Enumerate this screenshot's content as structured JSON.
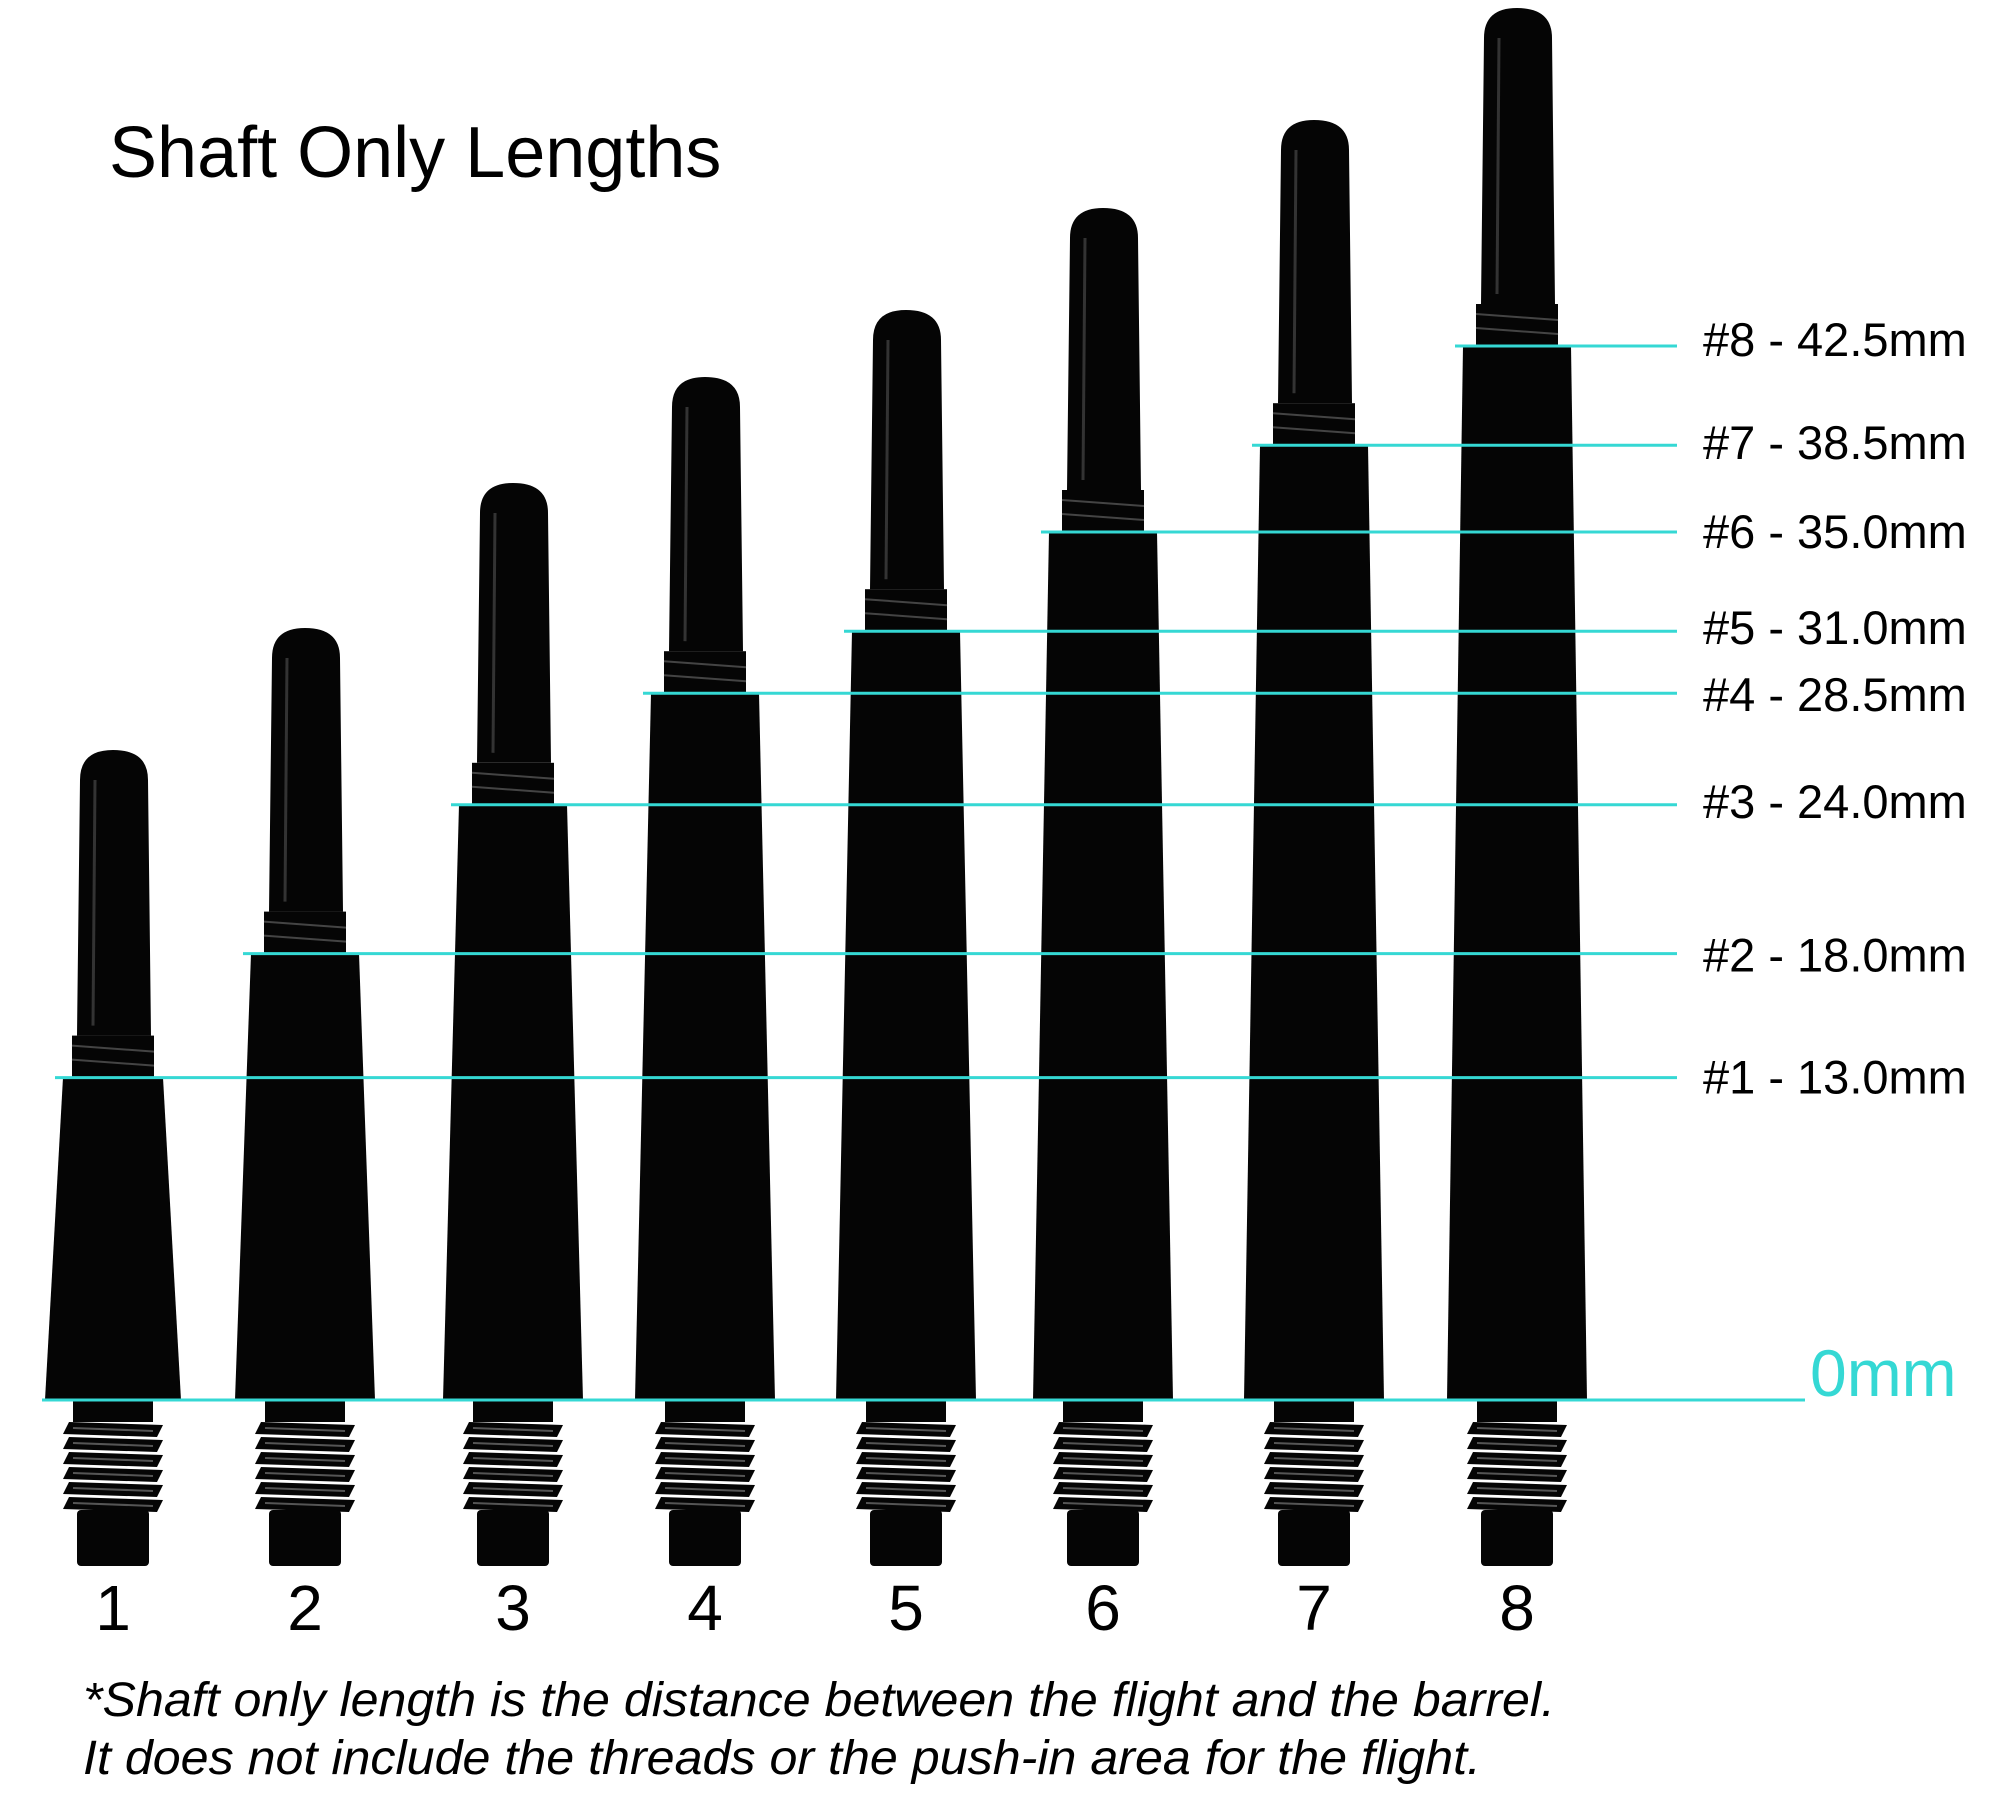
{
  "title": "Shaft Only Lengths",
  "zero_label": "0mm",
  "line_color": "#35d8d4",
  "shaft_color": "#050505",
  "footnote": [
    "*Shaft only length is the distance between the flight and the barrel.",
    "It does not include the threads or the push-in area for the flight."
  ],
  "chart_data": {
    "type": "diagram",
    "unit": "mm",
    "shafts": [
      {
        "number": "1",
        "label": "#1 - 13.0mm",
        "length_mm": 13.0
      },
      {
        "number": "2",
        "label": "#2 - 18.0mm",
        "length_mm": 18.0
      },
      {
        "number": "3",
        "label": "#3 - 24.0mm",
        "length_mm": 24.0
      },
      {
        "number": "4",
        "label": "#4 - 28.5mm",
        "length_mm": 28.5
      },
      {
        "number": "5",
        "label": "#5 - 31.0mm",
        "length_mm": 31.0
      },
      {
        "number": "6",
        "label": "#6 - 35.0mm",
        "length_mm": 35.0
      },
      {
        "number": "7",
        "label": "#7 - 38.5mm",
        "length_mm": 38.5
      },
      {
        "number": "8",
        "label": "#8 - 42.5mm",
        "length_mm": 42.5
      }
    ]
  }
}
